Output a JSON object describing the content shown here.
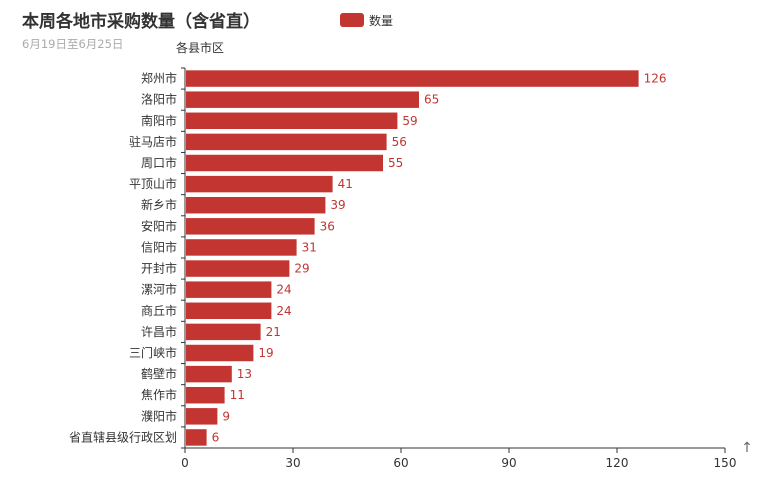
{
  "chart_data": {
    "type": "bar",
    "orientation": "horizontal",
    "title": "本周各地市采购数量（含省直）",
    "subtitle": "6月19日至6月25日",
    "ylabel": "各县市区",
    "legend": [
      "数量"
    ],
    "legend_position": "top",
    "categories": [
      "郑州市",
      "洛阳市",
      "南阳市",
      "驻马店市",
      "周口市",
      "平顶山市",
      "新乡市",
      "安阳市",
      "信阳市",
      "开封市",
      "漯河市",
      "商丘市",
      "许昌市",
      "三门峡市",
      "鹤壁市",
      "焦作市",
      "濮阳市",
      "省直辖县级行政区划"
    ],
    "series": [
      {
        "name": "数量",
        "values": [
          126,
          65,
          59,
          56,
          55,
          41,
          39,
          36,
          31,
          29,
          24,
          24,
          21,
          19,
          13,
          11,
          9,
          6
        ]
      }
    ],
    "xlim": [
      0,
      150
    ],
    "xticks": [
      0,
      30,
      60,
      90,
      120,
      150
    ],
    "grid": false,
    "bar_color": "#c23531",
    "show_data_labels": true
  },
  "toolbox": {
    "icon": "up-arrow-icon",
    "glyph": "↑"
  }
}
